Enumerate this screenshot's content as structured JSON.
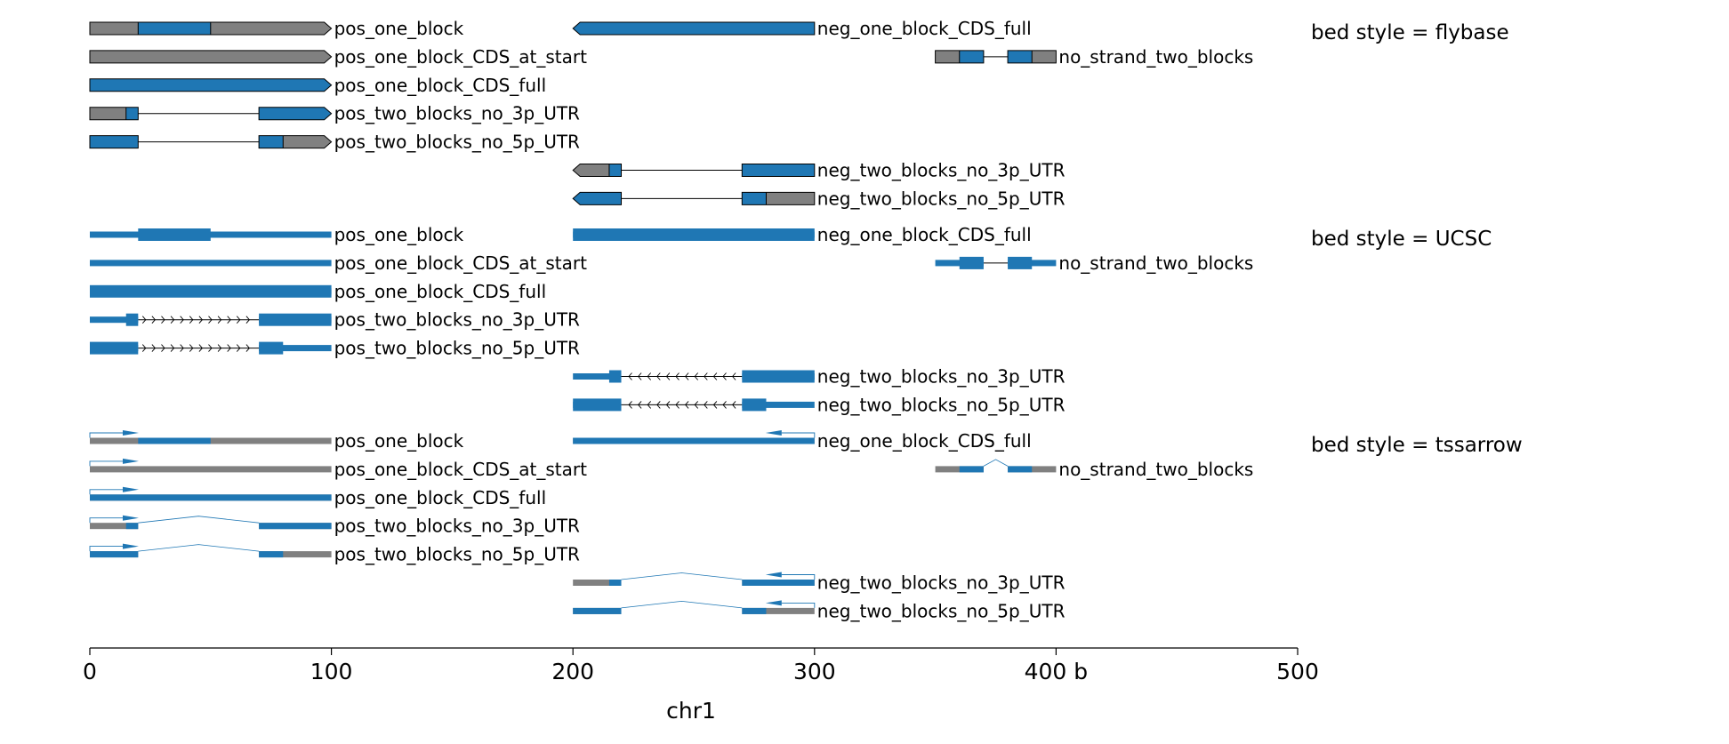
{
  "colors": {
    "cds": "#1f77b4",
    "utr": "#808080",
    "edge": "#000000",
    "axis": "#000000"
  },
  "axis": {
    "xlim": [
      0,
      500
    ],
    "ticks": [
      {
        "value": 0,
        "label": "0"
      },
      {
        "value": 100,
        "label": "100"
      },
      {
        "value": 200,
        "label": "200"
      },
      {
        "value": 300,
        "label": "300"
      },
      {
        "value": 400,
        "label": "400 b"
      },
      {
        "value": 500,
        "label": "500"
      }
    ],
    "xlabel": "chr1"
  },
  "sections": [
    {
      "style": "flybase",
      "title": "bed style = flybase",
      "genes": [
        {
          "name": "pos_one_block",
          "row": 0,
          "strand": "+",
          "blocks": [
            [
              0,
              100
            ]
          ],
          "cds": [
            20,
            50
          ]
        },
        {
          "name": "pos_one_block_CDS_at_start",
          "row": 1,
          "strand": "+",
          "blocks": [
            [
              0,
              100
            ]
          ],
          "cds": [
            0,
            0
          ]
        },
        {
          "name": "pos_one_block_CDS_full",
          "row": 2,
          "strand": "+",
          "blocks": [
            [
              0,
              100
            ]
          ],
          "cds": [
            0,
            100
          ]
        },
        {
          "name": "pos_two_blocks_no_3p_UTR",
          "row": 3,
          "strand": "+",
          "blocks": [
            [
              0,
              20
            ],
            [
              70,
              100
            ]
          ],
          "cds": [
            15,
            100
          ]
        },
        {
          "name": "pos_two_blocks_no_5p_UTR",
          "row": 4,
          "strand": "+",
          "blocks": [
            [
              0,
              20
            ],
            [
              70,
              100
            ]
          ],
          "cds": [
            0,
            80
          ]
        },
        {
          "name": "neg_one_block_CDS_full",
          "row": 0,
          "strand": "-",
          "blocks": [
            [
              200,
              300
            ]
          ],
          "cds": [
            200,
            300
          ]
        },
        {
          "name": "no_strand_two_blocks",
          "row": 1,
          "strand": ".",
          "blocks": [
            [
              350,
              370
            ],
            [
              380,
              400
            ]
          ],
          "cds": [
            360,
            390
          ]
        },
        {
          "name": "neg_two_blocks_no_3p_UTR",
          "row": 5,
          "strand": "-",
          "blocks": [
            [
              200,
              220
            ],
            [
              270,
              300
            ]
          ],
          "cds": [
            215,
            300
          ]
        },
        {
          "name": "neg_two_blocks_no_5p_UTR",
          "row": 6,
          "strand": "-",
          "blocks": [
            [
              200,
              220
            ],
            [
              270,
              300
            ]
          ],
          "cds": [
            200,
            280
          ]
        }
      ]
    },
    {
      "style": "UCSC",
      "title": "bed style = UCSC",
      "genes": [
        {
          "name": "pos_one_block",
          "row": 0,
          "strand": "+",
          "blocks": [
            [
              0,
              100
            ]
          ],
          "cds": [
            20,
            50
          ]
        },
        {
          "name": "pos_one_block_CDS_at_start",
          "row": 1,
          "strand": "+",
          "blocks": [
            [
              0,
              100
            ]
          ],
          "cds": [
            0,
            0
          ]
        },
        {
          "name": "pos_one_block_CDS_full",
          "row": 2,
          "strand": "+",
          "blocks": [
            [
              0,
              100
            ]
          ],
          "cds": [
            0,
            100
          ]
        },
        {
          "name": "pos_two_blocks_no_3p_UTR",
          "row": 3,
          "strand": "+",
          "blocks": [
            [
              0,
              20
            ],
            [
              70,
              100
            ]
          ],
          "cds": [
            15,
            100
          ]
        },
        {
          "name": "pos_two_blocks_no_5p_UTR",
          "row": 4,
          "strand": "+",
          "blocks": [
            [
              0,
              20
            ],
            [
              70,
              100
            ]
          ],
          "cds": [
            0,
            80
          ]
        },
        {
          "name": "neg_one_block_CDS_full",
          "row": 0,
          "strand": "-",
          "blocks": [
            [
              200,
              300
            ]
          ],
          "cds": [
            200,
            300
          ]
        },
        {
          "name": "no_strand_two_blocks",
          "row": 1,
          "strand": ".",
          "blocks": [
            [
              350,
              370
            ],
            [
              380,
              400
            ]
          ],
          "cds": [
            360,
            390
          ]
        },
        {
          "name": "neg_two_blocks_no_3p_UTR",
          "row": 5,
          "strand": "-",
          "blocks": [
            [
              200,
              220
            ],
            [
              270,
              300
            ]
          ],
          "cds": [
            215,
            300
          ]
        },
        {
          "name": "neg_two_blocks_no_5p_UTR",
          "row": 6,
          "strand": "-",
          "blocks": [
            [
              200,
              220
            ],
            [
              270,
              300
            ]
          ],
          "cds": [
            200,
            280
          ]
        }
      ]
    },
    {
      "style": "tssarrow",
      "title": "bed style = tssarrow",
      "genes": [
        {
          "name": "pos_one_block",
          "row": 0,
          "strand": "+",
          "blocks": [
            [
              0,
              100
            ]
          ],
          "cds": [
            20,
            50
          ]
        },
        {
          "name": "pos_one_block_CDS_at_start",
          "row": 1,
          "strand": "+",
          "blocks": [
            [
              0,
              100
            ]
          ],
          "cds": [
            0,
            0
          ]
        },
        {
          "name": "pos_one_block_CDS_full",
          "row": 2,
          "strand": "+",
          "blocks": [
            [
              0,
              100
            ]
          ],
          "cds": [
            0,
            100
          ]
        },
        {
          "name": "pos_two_blocks_no_3p_UTR",
          "row": 3,
          "strand": "+",
          "blocks": [
            [
              0,
              20
            ],
            [
              70,
              100
            ]
          ],
          "cds": [
            15,
            100
          ]
        },
        {
          "name": "pos_two_blocks_no_5p_UTR",
          "row": 4,
          "strand": "+",
          "blocks": [
            [
              0,
              20
            ],
            [
              70,
              100
            ]
          ],
          "cds": [
            0,
            80
          ]
        },
        {
          "name": "neg_one_block_CDS_full",
          "row": 0,
          "strand": "-",
          "blocks": [
            [
              200,
              300
            ]
          ],
          "cds": [
            200,
            300
          ]
        },
        {
          "name": "no_strand_two_blocks",
          "row": 1,
          "strand": ".",
          "blocks": [
            [
              350,
              370
            ],
            [
              380,
              400
            ]
          ],
          "cds": [
            360,
            390
          ]
        },
        {
          "name": "neg_two_blocks_no_3p_UTR",
          "row": 5,
          "strand": "-",
          "blocks": [
            [
              200,
              220
            ],
            [
              270,
              300
            ]
          ],
          "cds": [
            215,
            300
          ]
        },
        {
          "name": "neg_two_blocks_no_5p_UTR",
          "row": 6,
          "strand": "-",
          "blocks": [
            [
              200,
              220
            ],
            [
              270,
              300
            ]
          ],
          "cds": [
            200,
            280
          ]
        }
      ]
    }
  ]
}
